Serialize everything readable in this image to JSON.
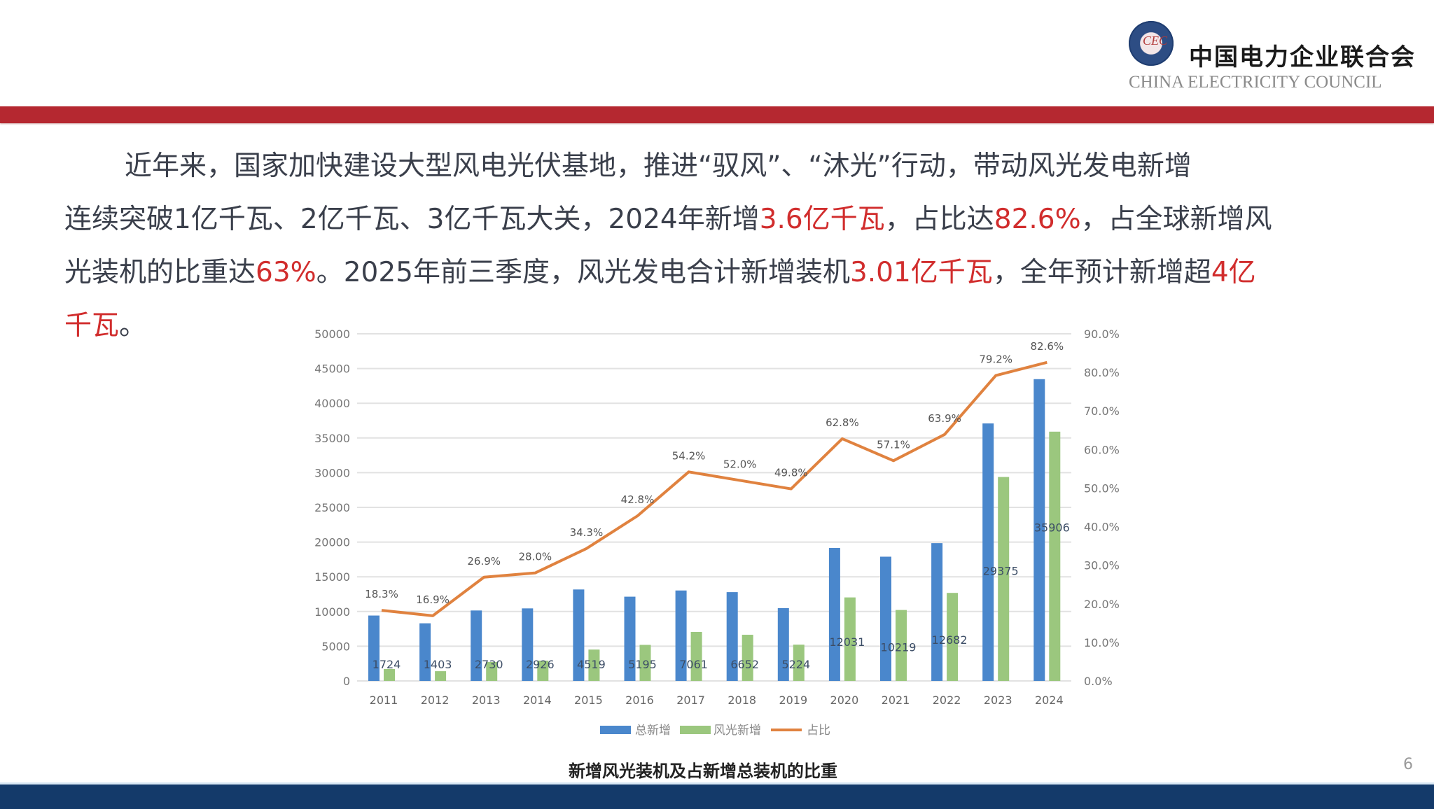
{
  "header": {
    "logo_icon": "cec-emblem-icon",
    "logo_letters": "CEC",
    "org_name_cn": "中国电力企业联合会",
    "org_name_en": "CHINA ELECTRICITY COUNCIL"
  },
  "colors": {
    "red_band": "#b52830",
    "blue_band": "#143a6a",
    "highlight_red": "#d12d2d",
    "series_total": "#4a87cc",
    "series_wind_solar": "#9bc77e",
    "series_ratio": "#e0823f"
  },
  "paragraph": {
    "line1": [
      {
        "text": "近年来，国家加快建设大型风电光伏基地，推进“驭风”、“沐光”行动，带动风光发电新增",
        "hl": false
      }
    ],
    "line2": [
      {
        "text": "连续突破1亿千瓦、2亿千瓦、3亿千瓦大关，2024年新增",
        "hl": false
      },
      {
        "text": "3.6亿千瓦",
        "hl": true
      },
      {
        "text": "，占比达",
        "hl": false
      },
      {
        "text": "82.6%",
        "hl": true
      },
      {
        "text": "，占全球新增风",
        "hl": false
      }
    ],
    "line3": [
      {
        "text": "光装机的比重达",
        "hl": false
      },
      {
        "text": "63%",
        "hl": true
      },
      {
        "text": "。2025年前三季度，风光发电合计新增装机",
        "hl": false
      },
      {
        "text": "3.01亿千瓦",
        "hl": true
      },
      {
        "text": "，全年预计新增超",
        "hl": false
      },
      {
        "text": "4亿",
        "hl": true
      }
    ],
    "line4": [
      {
        "text": "千瓦",
        "hl": true
      },
      {
        "text": "。",
        "hl": false
      }
    ]
  },
  "chart_data": {
    "type": "bar",
    "title": "新增风光装机及占新增总装机的比重",
    "categories": [
      "2011",
      "2012",
      "2013",
      "2014",
      "2015",
      "2016",
      "2017",
      "2018",
      "2019",
      "2020",
      "2021",
      "2022",
      "2023",
      "2024"
    ],
    "series": [
      {
        "name": "总新增",
        "type": "bar",
        "axis": "left",
        "values": [
          9421,
          8302,
          10149,
          10450,
          13175,
          12138,
          13028,
          12792,
          10490,
          19158,
          17897,
          19847,
          37090,
          43470
        ]
      },
      {
        "name": "风光新增",
        "type": "bar",
        "axis": "left",
        "values": [
          1724,
          1403,
          2730,
          2926,
          4519,
          5195,
          7061,
          6652,
          5224,
          12031,
          10219,
          12682,
          29375,
          35906
        ],
        "labels": [
          "1724",
          "1403",
          "2730",
          "2926",
          "4519",
          "5195",
          "7061",
          "6652",
          "5224",
          "12031",
          "10219",
          "12682",
          "29375",
          "35906"
        ]
      },
      {
        "name": "占比",
        "type": "line",
        "axis": "right",
        "values": [
          18.3,
          16.9,
          26.9,
          28.0,
          34.3,
          42.8,
          54.2,
          52.0,
          49.8,
          62.8,
          57.1,
          63.9,
          79.2,
          82.6
        ],
        "labels": [
          "18.3%",
          "16.9%",
          "26.9%",
          "28.0%",
          "34.3%",
          "42.8%",
          "54.2%",
          "52.0%",
          "49.8%",
          "62.8%",
          "57.1%",
          "63.9%",
          "79.2%",
          "82.6%"
        ]
      }
    ],
    "left_axis": {
      "min": 0,
      "max": 50000,
      "step": 5000,
      "ticks": [
        "0",
        "5000",
        "10000",
        "15000",
        "20000",
        "25000",
        "30000",
        "35000",
        "40000",
        "45000",
        "50000"
      ]
    },
    "right_axis": {
      "min": 0,
      "max": 90,
      "step": 10,
      "ticks": [
        "0.0%",
        "10.0%",
        "20.0%",
        "30.0%",
        "40.0%",
        "50.0%",
        "60.0%",
        "70.0%",
        "80.0%",
        "90.0%"
      ]
    },
    "xlabel": "",
    "ylabel": "",
    "grid": true,
    "legend_position": "bottom",
    "legend": [
      "总新增",
      "风光新增",
      "占比"
    ]
  },
  "footer": {
    "caption": "新增风光装机及占新增总装机的比重",
    "page_number": "6"
  }
}
